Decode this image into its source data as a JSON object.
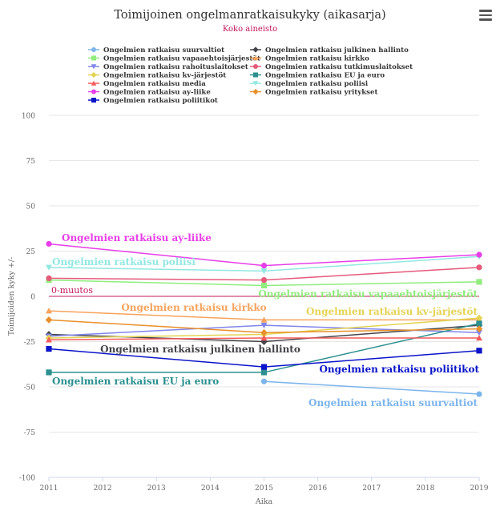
{
  "title": "Toimijoinen ongelmanratkaisukyky (aikasarja)",
  "subtitle": "Koko aineisto",
  "menu_icon": "hamburger-menu-icon",
  "chart_data": {
    "type": "line",
    "title": "Toimijoinen ongelmanratkaisukyky (aikasarja)",
    "subtitle": "Koko aineisto",
    "xlabel": "Aika",
    "ylabel": "Toimijoiden kyky +/-",
    "x": [
      2011,
      2012,
      2013,
      2014,
      2015,
      2016,
      2017,
      2018,
      2019
    ],
    "xlim": [
      2011,
      2019
    ],
    "ylim": [
      -100,
      100
    ],
    "yticks": [
      -100,
      -75,
      -50,
      -25,
      0,
      25,
      50,
      75,
      100
    ],
    "zero_line_label": "0-muutos",
    "zero_line_color": "#c2185b",
    "legend_position": "top",
    "series": [
      {
        "name": "Ongelmien ratkaisu suurvaltiot",
        "color": "#7cb5ec",
        "marker": "circle",
        "points": [
          [
            2015,
            -47
          ],
          [
            2019,
            -54
          ]
        ],
        "end_label": "Ongelmien ratkaisu suurvaltiot",
        "label_side": "right"
      },
      {
        "name": "Ongelmien ratkaisu julkinen hallinto",
        "color": "#434348",
        "marker": "diamond",
        "points": [
          [
            2011,
            -21
          ],
          [
            2015,
            -25
          ],
          [
            2019,
            -16
          ]
        ],
        "end_label": "Ongelmien ratkaisu julkinen hallinto",
        "label_side": "mid"
      },
      {
        "name": "Ongelmien ratkaisu vapaaehtoisjärjestöt",
        "color": "#90ed7d",
        "marker": "square",
        "points": [
          [
            2011,
            9
          ],
          [
            2015,
            6
          ],
          [
            2019,
            8
          ]
        ],
        "end_label": "Ongelmien ratkaisu vapaaehtoisjärjestöt",
        "label_side": "right"
      },
      {
        "name": "Ongelmien ratkaisu kirkko",
        "color": "#f7a35c",
        "marker": "triangle",
        "points": [
          [
            2011,
            -8
          ],
          [
            2015,
            -13
          ],
          [
            2019,
            -13
          ]
        ],
        "end_label": "Ongelmien ratkaisu kirkko",
        "label_side": "mid"
      },
      {
        "name": "Ongelmien ratkaisu rahoituslaitokset",
        "color": "#8085e9",
        "marker": "triangle-down",
        "points": [
          [
            2011,
            -22
          ],
          [
            2015,
            -16
          ],
          [
            2019,
            -20
          ]
        ],
        "end_label": "",
        "label_side": "none"
      },
      {
        "name": "Ongelmien ratkaisu tutkimuslaitokset",
        "color": "#e55a7a",
        "marker": "circle",
        "points": [
          [
            2011,
            10
          ],
          [
            2015,
            9
          ],
          [
            2019,
            16
          ]
        ],
        "end_label": "",
        "label_side": "none"
      },
      {
        "name": "Ongelmien ratkaisu kv-järjestöt",
        "color": "#e4d354",
        "marker": "diamond",
        "points": [
          [
            2011,
            -23
          ],
          [
            2015,
            -21
          ],
          [
            2019,
            -12
          ]
        ],
        "end_label": "Ongelmien ratkaisu kv-järjestöt",
        "label_side": "right"
      },
      {
        "name": "Ongelmien ratkaisu EU ja euro",
        "color": "#2b908f",
        "marker": "square",
        "points": [
          [
            2011,
            -42
          ],
          [
            2015,
            -42
          ],
          [
            2019,
            -15
          ]
        ],
        "end_label": "Ongelmien ratkaisu EU ja euro",
        "label_side": "left"
      },
      {
        "name": "Ongelmien ratkaisu media",
        "color": "#f45b5b",
        "marker": "triangle",
        "points": [
          [
            2011,
            -24
          ],
          [
            2015,
            -23
          ],
          [
            2019,
            -23
          ]
        ],
        "end_label": "",
        "label_side": "none"
      },
      {
        "name": "Ongelmien ratkaisu poliisi",
        "color": "#91e8e1",
        "marker": "triangle-down",
        "points": [
          [
            2011,
            16
          ],
          [
            2015,
            14
          ],
          [
            2019,
            22
          ]
        ],
        "end_label": "Ongelmien ratkaisu poliisi",
        "label_side": "left"
      },
      {
        "name": "Ongelmien ratkaisu ay-liike",
        "color": "#e83ee8",
        "marker": "circle",
        "points": [
          [
            2011,
            29
          ],
          [
            2015,
            17
          ],
          [
            2019,
            23
          ]
        ],
        "end_label": "Ongelmien ratkaisu ay-liike",
        "label_side": "left"
      },
      {
        "name": "Ongelmien ratkaisu yritykset",
        "color": "#e8902a",
        "marker": "diamond",
        "points": [
          [
            2011,
            -13
          ],
          [
            2015,
            -20
          ],
          [
            2019,
            -18
          ]
        ],
        "end_label": "",
        "label_side": "none"
      },
      {
        "name": "Ongelmien ratkaisu poliitikot",
        "color": "#0a14c8",
        "marker": "square",
        "points": [
          [
            2011,
            -29
          ],
          [
            2015,
            -39
          ],
          [
            2019,
            -30
          ]
        ],
        "end_label": "Ongelmien ratkaisu poliitikot",
        "label_side": "right"
      }
    ]
  }
}
